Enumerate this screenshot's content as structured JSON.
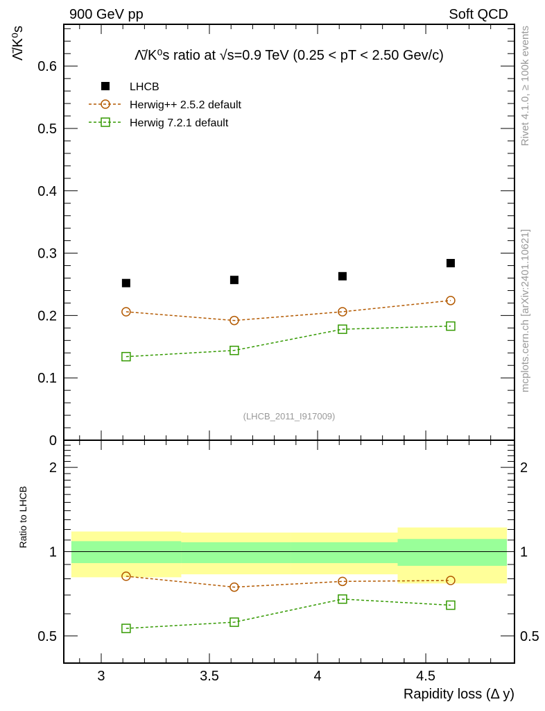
{
  "header": {
    "left": "900 GeV pp",
    "right": "Soft QCD"
  },
  "side": {
    "rivet": "Rivet 4.1.0, ≥ 100k events",
    "mcplots": "mcplots.cern.ch [arXiv:2401.10621]"
  },
  "watermark": "(LHCB_2011_I917009)",
  "chart_data": [
    {
      "type": "scatter",
      "title": "Λ̄/K⁰s ratio at √s=0.9 TeV (0.25 < pT < 2.50 Gev/c)",
      "ylabel": "Λ̄/K⁰s",
      "xlim": [
        2.827,
        4.91
      ],
      "ylim": [
        0,
        0.667
      ],
      "yticks": [
        0,
        0.1,
        0.2,
        0.3,
        0.4,
        0.5,
        0.6
      ],
      "ytick_labels": [
        "0",
        "0.1",
        "0.2",
        "0.3",
        "0.4",
        "0.5",
        "0.6"
      ],
      "legend_position": "top-left",
      "x": [
        3.115,
        3.615,
        4.115,
        4.615
      ],
      "series": [
        {
          "name": "LHCB",
          "values": [
            0.252,
            0.257,
            0.263,
            0.284
          ],
          "color": "#000000",
          "marker": "filled-square"
        },
        {
          "name": "Herwig++ 2.5.2 default",
          "values": [
            0.206,
            0.192,
            0.206,
            0.224
          ],
          "color": "#b35900",
          "marker": "open-circle"
        },
        {
          "name": "Herwig 7.2.1 default",
          "values": [
            0.134,
            0.144,
            0.178,
            0.183
          ],
          "color": "#339900",
          "marker": "open-square"
        }
      ]
    },
    {
      "type": "line",
      "ylabel": "Ratio to LHCB",
      "xlabel": "Rapidity loss (Δ y)",
      "yscale": "log",
      "ylim": [
        0.4,
        2.5
      ],
      "yticks": [
        0.5,
        1,
        2
      ],
      "ytick_labels": [
        "0.5",
        "1",
        "2"
      ],
      "xticks": [
        3,
        3.5,
        4,
        4.5
      ],
      "xtick_labels": [
        "3",
        "3.5",
        "4",
        "4.5"
      ],
      "bins": [
        [
          2.862,
          3.37
        ],
        [
          3.37,
          3.875
        ],
        [
          3.875,
          4.37
        ],
        [
          4.37,
          4.875
        ]
      ],
      "band_outer": [
        [
          0.81,
          1.18
        ],
        [
          0.83,
          1.17
        ],
        [
          0.83,
          1.17
        ],
        [
          0.77,
          1.22
        ]
      ],
      "band_inner": [
        [
          0.91,
          1.09
        ],
        [
          0.91,
          1.08
        ],
        [
          0.91,
          1.08
        ],
        [
          0.89,
          1.11
        ]
      ],
      "x": [
        3.115,
        3.615,
        4.115,
        4.615
      ],
      "series": [
        {
          "name": "Herwig++ 2.5.2 default",
          "values": [
            0.817,
            0.747,
            0.783,
            0.789
          ],
          "color": "#b35900",
          "marker": "open-circle"
        },
        {
          "name": "Herwig 7.2.1 default",
          "values": [
            0.532,
            0.56,
            0.677,
            0.644
          ],
          "color": "#339900",
          "marker": "open-square"
        }
      ]
    }
  ]
}
